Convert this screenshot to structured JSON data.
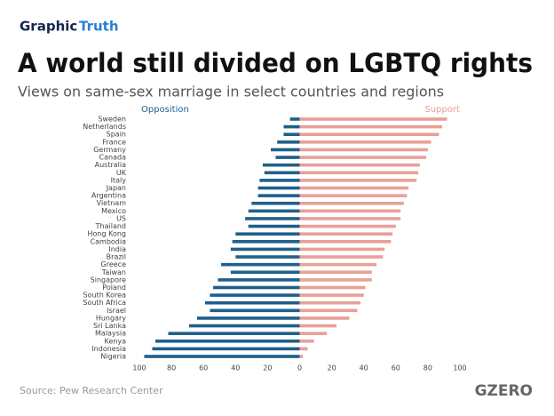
{
  "chart_data": {
    "type": "diverging-bar",
    "brand_main": "Graphic",
    "brand_accent": "Truth",
    "title": "A world still divided on LGBTQ rights",
    "subtitle": "Views on same-sex marriage in select countries and regions",
    "source": "Source: Pew Research Center",
    "logo": "GZERO",
    "categories": [
      "Sweden",
      "Netherlands",
      "Spain",
      "France",
      "Germany",
      "Canada",
      "Australia",
      "UK",
      "Italy",
      "Japan",
      "Argentina",
      "Vietnam",
      "Mexico",
      "US",
      "Thailand",
      "Hong Kong",
      "Cambodia",
      "India",
      "Brazil",
      "Greece",
      "Taiwan",
      "Singapore",
      "Poland",
      "South Korea",
      "South Africa",
      "Israel",
      "Hungary",
      "Sri Lanka",
      "Malaysia",
      "Kenya",
      "Indonesia",
      "Nigeria"
    ],
    "series": [
      {
        "name": "Opposition",
        "color": "#1f5f8b",
        "values": [
          -6,
          -10,
          -10,
          -14,
          -18,
          -15,
          -23,
          -22,
          -25,
          -26,
          -26,
          -30,
          -32,
          -34,
          -32,
          -40,
          -42,
          -43,
          -40,
          -49,
          -43,
          -51,
          -54,
          -56,
          -59,
          -56,
          -64,
          -69,
          -82,
          -90,
          -92,
          -97
        ]
      },
      {
        "name": "Support",
        "color": "#e8a097",
        "values": [
          92,
          89,
          87,
          82,
          80,
          79,
          75,
          74,
          73,
          68,
          67,
          65,
          63,
          63,
          60,
          58,
          57,
          53,
          52,
          48,
          45,
          45,
          41,
          40,
          38,
          36,
          31,
          23,
          17,
          9,
          5,
          2
        ]
      }
    ],
    "xlim": [
      -100,
      100
    ],
    "xticks": [
      {
        "value": -100,
        "label": "100"
      },
      {
        "value": -80,
        "label": "80"
      },
      {
        "value": -60,
        "label": "60"
      },
      {
        "value": -40,
        "label": "40"
      },
      {
        "value": -20,
        "label": "20"
      },
      0,
      20,
      40,
      60,
      80,
      100
    ]
  }
}
